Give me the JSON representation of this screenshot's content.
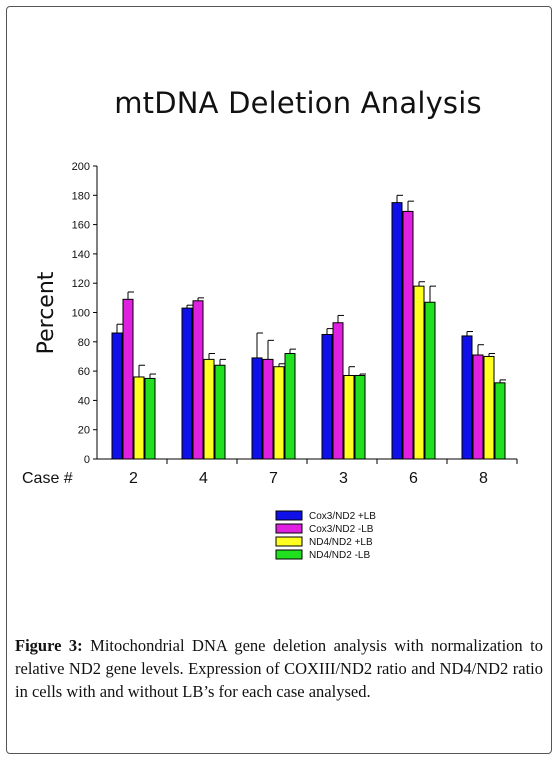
{
  "chart_data": {
    "type": "bar",
    "title": "mtDNA Deletion Analysis",
    "ylabel": "Percent",
    "xlabel": "Case #",
    "ylim": [
      0,
      200
    ],
    "yticks": [
      0,
      20,
      40,
      60,
      80,
      100,
      120,
      140,
      160,
      180,
      200
    ],
    "categories": [
      "2",
      "4",
      "7",
      "3",
      "6",
      "8"
    ],
    "series": [
      {
        "name": "Cox3/ND2 +LB",
        "color": "#1010e8",
        "values": [
          86,
          103,
          69,
          85,
          175,
          84
        ],
        "errors": [
          6,
          2,
          17,
          4,
          5,
          3
        ]
      },
      {
        "name": "Cox3/ND2 -LB",
        "color": "#e020e0",
        "values": [
          109,
          108,
          68,
          93,
          169,
          71
        ],
        "errors": [
          5,
          2,
          13,
          5,
          7,
          7
        ]
      },
      {
        "name": "ND4/ND2 +LB",
        "color": "#ffff20",
        "values": [
          56,
          68,
          63,
          57,
          118,
          70
        ],
        "errors": [
          8,
          4,
          2,
          6,
          3,
          2
        ]
      },
      {
        "name": "ND4/ND2 -LB",
        "color": "#20e020",
        "values": [
          55,
          64,
          72,
          57,
          107,
          52
        ],
        "errors": [
          3,
          4,
          3,
          1,
          11,
          2
        ]
      }
    ],
    "grid": false,
    "legend": "bottom"
  },
  "caption": {
    "label": "Figure 3:",
    "text": " Mitochondrial DNA gene deletion analysis with normalization to relative ND2 gene levels. Expression of COXIII/ND2 ratio and ND4/ND2 ratio in cells with and without LB’s for each case analysed."
  }
}
